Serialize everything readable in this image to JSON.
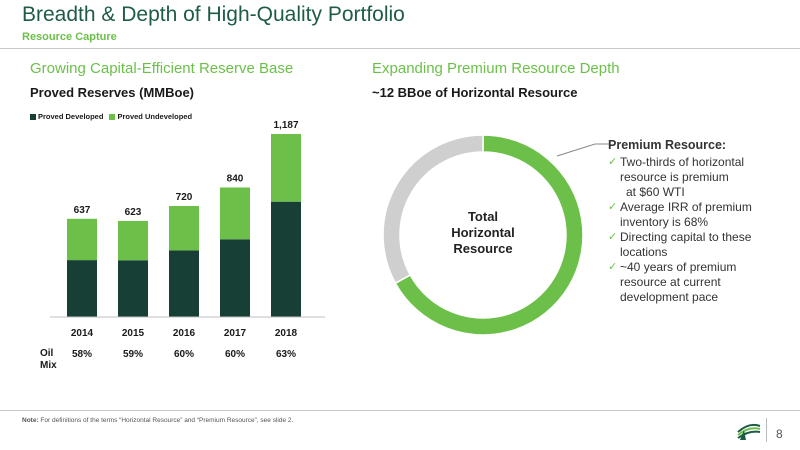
{
  "header": {
    "title": "Breadth & Depth of High-Quality Portfolio",
    "subtitle": "Resource Capture"
  },
  "left": {
    "heading": "Growing Capital-Efficient Reserve Base",
    "subheading": "Proved Reserves (MMBoe)",
    "oil_mix_label_line1": "Oil",
    "oil_mix_label_line2": "Mix"
  },
  "right": {
    "heading": "Expanding Premium Resource Depth",
    "subheading": "~12 BBoe of Horizontal Resource",
    "center_line1": "Total",
    "center_line2": "Horizontal",
    "center_line3": "Resource",
    "callout_head": "Premium Resource:",
    "bullets": [
      {
        "text": "Two-thirds of horizontal resource is premium",
        "check": "✓"
      },
      {
        "text": "at $60 WTI",
        "check": ""
      },
      {
        "text": "Average IRR of premium inventory is 68%",
        "check": "✓"
      },
      {
        "text": "Directing capital to these locations",
        "check": "✓"
      },
      {
        "text": "~40 years of premium resource at current development pace",
        "check": "✓"
      }
    ]
  },
  "chart_data": [
    {
      "type": "bar",
      "stacked": true,
      "title": "Proved Reserves (MMBoe)",
      "categories": [
        "2014",
        "2015",
        "2016",
        "2017",
        "2018"
      ],
      "series": [
        {
          "name": "Proved Developed",
          "color": "#173f35",
          "values": [
            369,
            368,
            432,
            504,
            748
          ]
        },
        {
          "name": "Proved Undeveloped",
          "color": "#6cc04a",
          "values": [
            268,
            255,
            288,
            336,
            439
          ]
        }
      ],
      "totals": [
        "637",
        "623",
        "720",
        "840",
        "1,187"
      ],
      "oil_mix": [
        "58%",
        "59%",
        "60%",
        "60%",
        "63%"
      ],
      "ylim": [
        0,
        1187
      ],
      "grid": false,
      "legend": "top-left"
    },
    {
      "type": "pie",
      "donut": true,
      "slices": [
        {
          "label": "Premium",
          "value": 67,
          "color": "#6cc04a"
        },
        {
          "label": "Non-premium",
          "value": 33,
          "color": "#cfcfcf"
        }
      ]
    }
  ],
  "footer": {
    "note_bold": "Note:",
    "note_text": " For definitions of the terms “Horizontal Resource” and “Premium Resource”, see slide 2.",
    "page": "8"
  }
}
